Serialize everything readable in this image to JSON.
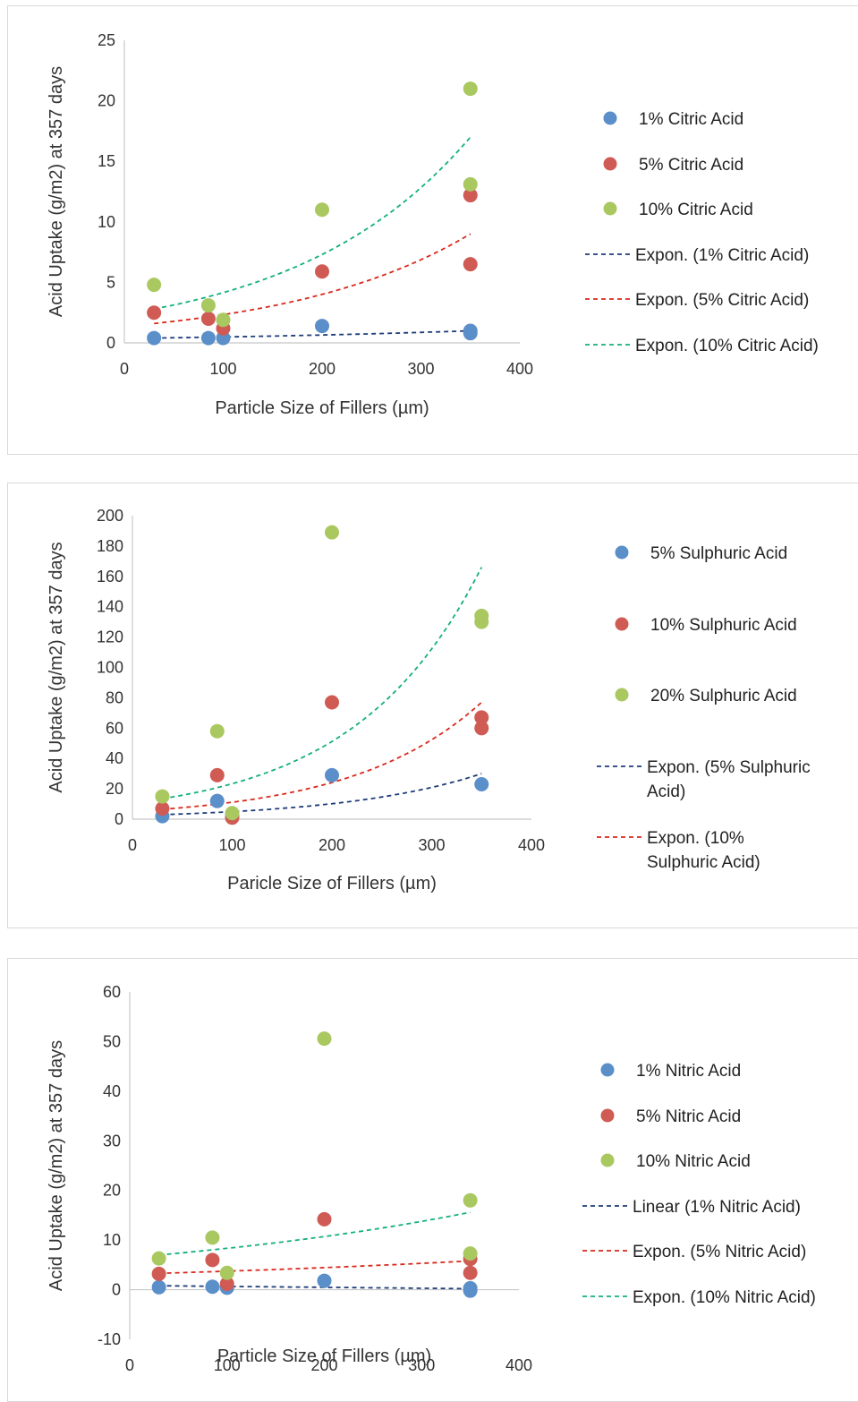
{
  "colors": {
    "blue": "#5b8fc9",
    "red": "#cf5b54",
    "green": "#a9c85f",
    "trend_blue": "#1f3d7a",
    "trend_red": "#d9291c",
    "trend_green": "#13b07a"
  },
  "chart_data": [
    {
      "type": "scatter",
      "title": "",
      "xlabel": "Particle Size of Fillers (µm)",
      "ylabel": "Acid Uptake (g/m2) at 357 days",
      "xlim": [
        0,
        400
      ],
      "ylim": [
        0,
        25
      ],
      "xticks": [
        "0",
        "100",
        "200",
        "300",
        "400"
      ],
      "yticks": [
        "0",
        "5",
        "10",
        "15",
        "20",
        "25"
      ],
      "grid": false,
      "legend_position": "right",
      "series": [
        {
          "name": "1% Citric Acid",
          "color": "#5b8fc9",
          "points": [
            [
              30,
              0.4
            ],
            [
              85,
              0.4
            ],
            [
              100,
              0.4
            ],
            [
              200,
              1.4
            ],
            [
              350,
              1.0
            ],
            [
              350,
              0.8
            ]
          ]
        },
        {
          "name": "5% Citric Acid",
          "color": "#cf5b54",
          "points": [
            [
              30,
              2.5
            ],
            [
              85,
              2.0
            ],
            [
              100,
              1.2
            ],
            [
              200,
              5.9
            ],
            [
              350,
              6.5
            ],
            [
              350,
              12.2
            ]
          ]
        },
        {
          "name": "10% Citric Acid",
          "color": "#a9c85f",
          "points": [
            [
              30,
              4.8
            ],
            [
              85,
              3.1
            ],
            [
              100,
              1.9
            ],
            [
              200,
              11.0
            ],
            [
              350,
              13.1
            ],
            [
              350,
              21.0
            ]
          ]
        }
      ],
      "trendlines": [
        {
          "name": "Expon. (1% Citric Acid)",
          "color": "#1f3d7a",
          "kind": "exponential",
          "x_range": [
            30,
            350
          ],
          "y_start": 0.4,
          "y_end": 1.0
        },
        {
          "name": "Expon. (5% Citric Acid)",
          "color": "#d9291c",
          "kind": "exponential",
          "x_range": [
            30,
            350
          ],
          "y_start": 1.6,
          "y_end": 9.0
        },
        {
          "name": "Expon. (10% Citric Acid)",
          "color": "#13b07a",
          "kind": "exponential",
          "x_range": [
            30,
            350
          ],
          "y_start": 2.8,
          "y_end": 17.0
        }
      ]
    },
    {
      "type": "scatter",
      "title": "",
      "xlabel": "Paricle Size of Fillers (µm)",
      "ylabel": "Acid Uptake (g/m2) at 357 days",
      "xlim": [
        0,
        400
      ],
      "ylim": [
        0,
        200
      ],
      "xticks": [
        "0",
        "100",
        "200",
        "300",
        "400"
      ],
      "yticks": [
        "0",
        "20",
        "40",
        "60",
        "80",
        "100",
        "120",
        "140",
        "160",
        "180",
        "200"
      ],
      "grid": false,
      "legend_position": "right",
      "series": [
        {
          "name": "5% Sulphuric Acid",
          "color": "#5b8fc9",
          "points": [
            [
              30,
              2
            ],
            [
              85,
              12
            ],
            [
              100,
              2
            ],
            [
              200,
              29
            ],
            [
              350,
              23
            ]
          ]
        },
        {
          "name": "10% Sulphuric Acid",
          "color": "#cf5b54",
          "points": [
            [
              30,
              7
            ],
            [
              85,
              29
            ],
            [
              100,
              1
            ],
            [
              200,
              77
            ],
            [
              350,
              67
            ],
            [
              350,
              60
            ]
          ]
        },
        {
          "name": "20% Sulphuric Acid",
          "color": "#a9c85f",
          "points": [
            [
              30,
              15
            ],
            [
              85,
              58
            ],
            [
              100,
              4
            ],
            [
              200,
              189
            ],
            [
              350,
              134
            ],
            [
              350,
              130
            ]
          ]
        }
      ],
      "trendlines": [
        {
          "name": "Expon. (5% Sulphuric Acid)",
          "color": "#1f3d7a",
          "kind": "exponential",
          "x_range": [
            30,
            350
          ],
          "y_start": 3,
          "y_end": 30
        },
        {
          "name": "Expon. (10% Sulphuric Acid)",
          "color": "#d9291c",
          "kind": "exponential",
          "x_range": [
            30,
            350
          ],
          "y_start": 6.5,
          "y_end": 77
        },
        {
          "name": "",
          "color": "#13b07a",
          "kind": "exponential",
          "x_range": [
            30,
            350
          ],
          "y_start": 13.5,
          "y_end": 166
        }
      ]
    },
    {
      "type": "scatter",
      "title": "",
      "xlabel": "Particle Size of Fillers (µm)",
      "ylabel": "Acid Uptake (g/m2) at 357 days",
      "xlim": [
        0,
        400
      ],
      "ylim": [
        -10,
        60
      ],
      "xticks": [
        "0",
        "100",
        "200",
        "300",
        "400"
      ],
      "yticks": [
        "-10",
        "0",
        "10",
        "20",
        "30",
        "40",
        "50",
        "60"
      ],
      "grid": false,
      "legend_position": "right",
      "series": [
        {
          "name": "1% Nitric Acid",
          "color": "#5b8fc9",
          "points": [
            [
              30,
              0.5
            ],
            [
              85,
              0.6
            ],
            [
              100,
              0.4
            ],
            [
              200,
              1.8
            ],
            [
              350,
              0.3
            ],
            [
              350,
              -0.2
            ]
          ]
        },
        {
          "name": "5% Nitric Acid",
          "color": "#cf5b54",
          "points": [
            [
              30,
              3.2
            ],
            [
              85,
              6.0
            ],
            [
              100,
              1.2
            ],
            [
              200,
              14.2
            ],
            [
              350,
              6.2
            ],
            [
              350,
              3.4
            ]
          ]
        },
        {
          "name": "10% Nitric Acid",
          "color": "#a9c85f",
          "points": [
            [
              30,
              6.3
            ],
            [
              85,
              10.5
            ],
            [
              100,
              3.4
            ],
            [
              200,
              50.6
            ],
            [
              350,
              18.0
            ],
            [
              350,
              7.3
            ]
          ]
        }
      ],
      "trendlines": [
        {
          "name": "Linear (1% Nitric Acid)",
          "color": "#1f3d7a",
          "kind": "linear",
          "x_range": [
            30,
            350
          ],
          "y_start": 0.8,
          "y_end": 0.2
        },
        {
          "name": "Expon. (5% Nitric Acid)",
          "color": "#d9291c",
          "kind": "exponential",
          "x_range": [
            30,
            350
          ],
          "y_start": 3.3,
          "y_end": 5.8
        },
        {
          "name": "Expon. (10% Nitric Acid)",
          "color": "#13b07a",
          "kind": "exponential",
          "x_range": [
            30,
            350
          ],
          "y_start": 7.0,
          "y_end": 15.6
        }
      ]
    }
  ]
}
